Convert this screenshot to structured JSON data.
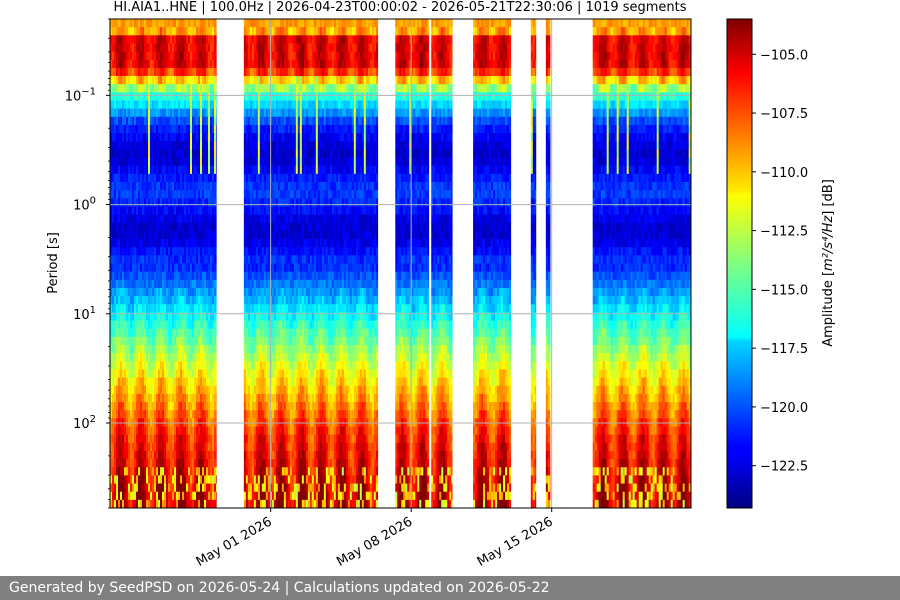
{
  "chart_data": {
    "type": "heatmap",
    "title": "HI.AIA1..HNE | 100.0Hz | 2026-04-23T00:00:02 - 2026-05-21T22:30:06 | 1019 segments",
    "xlabel": "",
    "ylabel": "Period [s]",
    "x_range": [
      "2026-04-23T00:00:02",
      "2026-05-21T22:30:06"
    ],
    "x_ticks": [
      "May 01 2026",
      "May 08 2026",
      "May 15 2026"
    ],
    "x_tick_values": [
      "2026-05-01",
      "2026-05-08",
      "2026-05-15"
    ],
    "y_scale": "log",
    "y_inverted": true,
    "ylim": [
      0.02,
      600
    ],
    "y_ticks": [
      {
        "value": 0.1,
        "base": "10",
        "exp": "−1"
      },
      {
        "value": 1,
        "base": "10",
        "exp": "0"
      },
      {
        "value": 10,
        "base": "10",
        "exp": "1"
      },
      {
        "value": 100,
        "base": "10",
        "exp": "2"
      }
    ],
    "grid": true,
    "data_segments": [
      [
        "2026-04-23T00:00",
        "2026-04-28T07:00"
      ],
      [
        "2026-04-29T16:00",
        "2026-05-06T08:00"
      ],
      [
        "2026-05-07T05:00",
        "2026-05-08T21:00"
      ],
      [
        "2026-05-09T00:00",
        "2026-05-10T01:00"
      ],
      [
        "2026-05-11T02:00",
        "2026-05-12T23:00"
      ],
      [
        "2026-05-13T23:00",
        "2026-05-14T05:00"
      ],
      [
        "2026-05-14T17:00",
        "2026-05-14T22:00"
      ],
      [
        "2026-05-17T01:00",
        "2026-05-21T22:30"
      ]
    ],
    "colorbar": {
      "label_prefix": "Amplitude [",
      "label_math": "m²/s⁴/Hz",
      "label_suffix": "] [dB]",
      "vmin": -124.3,
      "vmax": -103.5,
      "ticks": [
        "−105.0",
        "−107.5",
        "−110.0",
        "−112.5",
        "−115.0",
        "−117.5",
        "−120.0",
        "−122.5"
      ],
      "tick_values": [
        -105.0,
        -107.5,
        -110.0,
        -112.5,
        -115.0,
        -117.5,
        -120.0,
        -122.5
      ],
      "colormap": "jet"
    }
  },
  "footer": {
    "text": "Generated by SeedPSD on 2026-05-24 | Calculations updated on 2026-05-22"
  }
}
